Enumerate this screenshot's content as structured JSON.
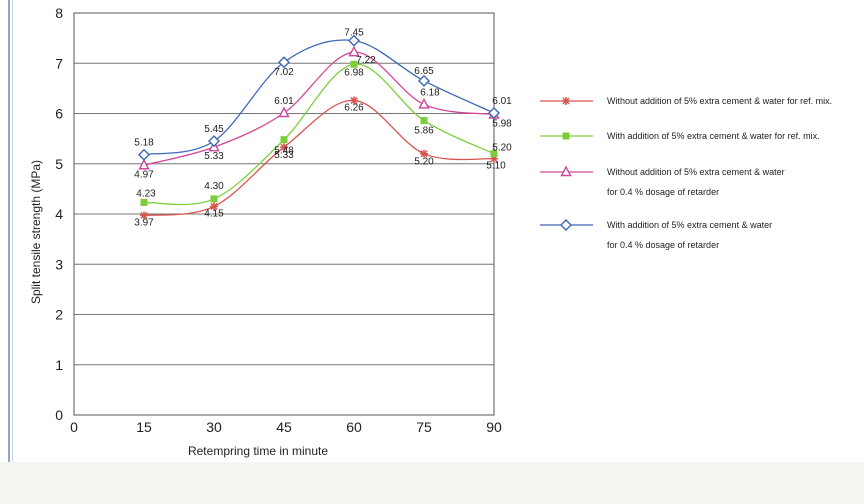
{
  "chart_data": {
    "type": "line",
    "title": "",
    "xlabel": "Retempring time in minute",
    "ylabel": "Split tensile strength (MPa)",
    "x": [
      15,
      30,
      45,
      60,
      75,
      90
    ],
    "x_ticks": [
      0,
      15,
      30,
      45,
      60,
      75,
      90
    ],
    "xlim": [
      0,
      90
    ],
    "y_ticks": [
      0,
      1,
      2,
      3,
      4,
      5,
      6,
      7,
      8
    ],
    "ylim": [
      0,
      8
    ],
    "grid": "horizontal",
    "legend_position": "right",
    "series": [
      {
        "name": "Without addition of 5% extra cement & water for ref. mix.",
        "legend_lines": [
          "Without addition of 5% extra cement & water for ref. mix."
        ],
        "values": [
          3.97,
          4.15,
          5.33,
          6.26,
          5.2,
          5.1
        ],
        "labels": [
          "3.97",
          "4.15",
          "5.33",
          "6.26",
          "5.20",
          "5.10"
        ],
        "color": "#d9534f",
        "marker": "star"
      },
      {
        "name": "With addition of 5% extra cement & water for ref. mix.",
        "legend_lines": [
          "With addition of 5% extra cement & water for ref. mix."
        ],
        "values": [
          4.23,
          4.3,
          5.48,
          6.98,
          5.86,
          5.2
        ],
        "labels": [
          "4.23",
          "4.30",
          "5.48",
          "6.98",
          "5.86",
          "5.20"
        ],
        "color": "#7ccf3a",
        "marker": "square"
      },
      {
        "name": "Without addition of 5% extra cement & water for 0.4 % dosage of retarder",
        "legend_lines": [
          "Without  addition of 5% extra cement & water",
          "for 0.4 % dosage of retarder"
        ],
        "values": [
          4.97,
          5.33,
          6.01,
          7.22,
          6.18,
          5.98
        ],
        "labels": [
          "4.97",
          "5.33",
          "6.01",
          "7.22",
          "6.18",
          "5.98"
        ],
        "color": "#d2479a",
        "marker": "triangle"
      },
      {
        "name": "With addition of 5% extra cement & water for 0.4 % dosage of retarder",
        "legend_lines": [
          "With addition of 5% extra cement & water",
          "for 0.4 % dosage of retarder"
        ],
        "values": [
          5.18,
          5.45,
          7.02,
          7.45,
          6.65,
          6.01
        ],
        "labels": [
          "5.18",
          "5.45",
          "7.02",
          "7.45",
          "6.65",
          "6.01"
        ],
        "color": "#3d67b8",
        "marker": "diamond"
      }
    ]
  }
}
